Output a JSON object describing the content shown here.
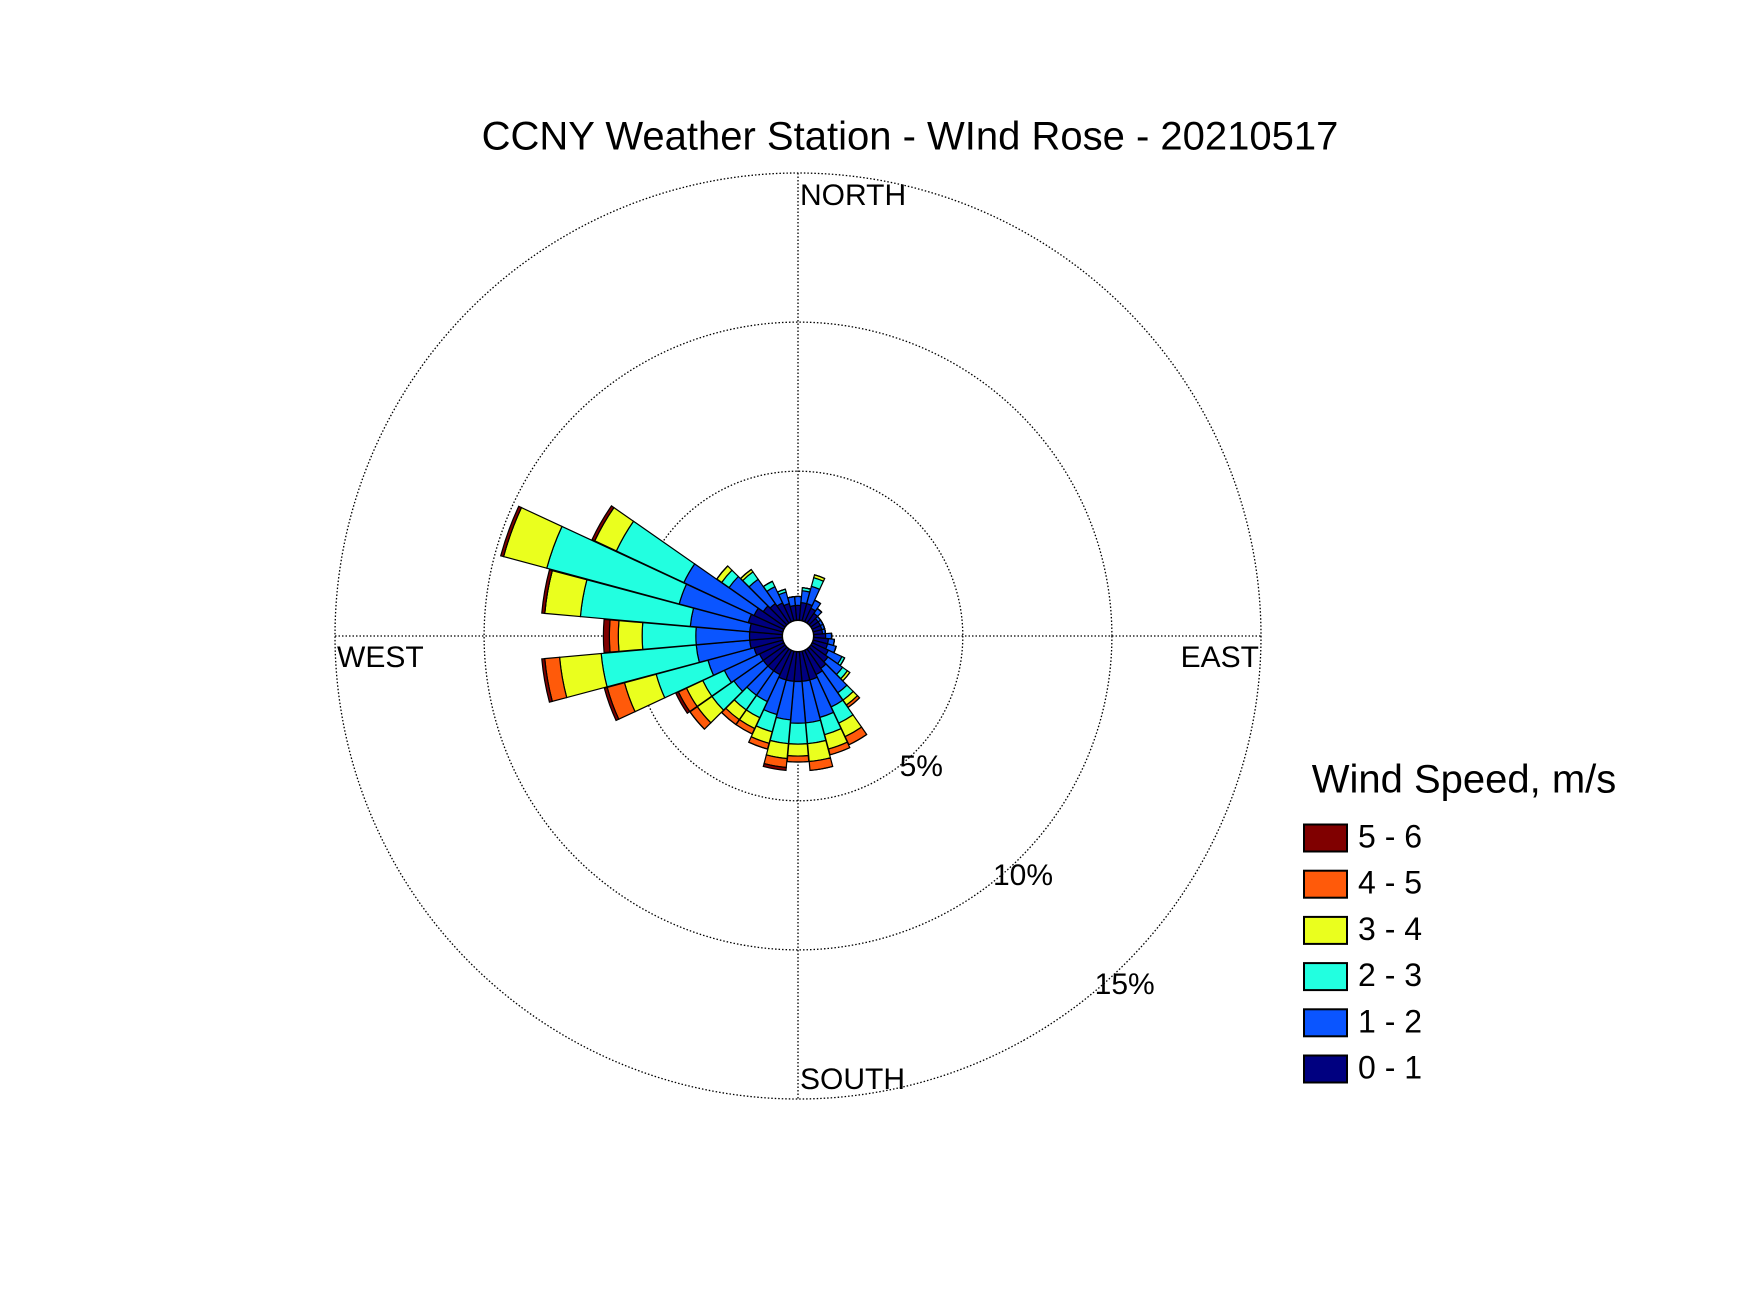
{
  "chart_data": {
    "type": "windrose",
    "title": "CCNY Weather Station - WInd Rose - 20210517",
    "direction_labels": [
      "NORTH",
      "EAST",
      "SOUTH",
      "WEST"
    ],
    "legend_title": "Wind Speed, m/s",
    "x": [
      0,
      10,
      20,
      30,
      40,
      50,
      60,
      70,
      80,
      90,
      100,
      110,
      120,
      130,
      140,
      150,
      160,
      170,
      180,
      190,
      200,
      210,
      220,
      230,
      240,
      250,
      260,
      270,
      280,
      290,
      300,
      310,
      320,
      330,
      340,
      350
    ],
    "xlim": [
      0,
      360
    ],
    "ylim": [
      0,
      15
    ],
    "yticks": [
      {
        "value": 5,
        "label": "5%"
      },
      {
        "value": 10,
        "label": "10%"
      },
      {
        "value": 15,
        "label": "15%"
      }
    ],
    "series": [
      {
        "name": "5 - 6",
        "color": "#800000",
        "values": [
          0,
          0,
          0,
          0,
          0,
          0,
          0,
          0,
          0,
          0,
          0,
          0,
          0,
          0,
          0,
          0,
          0,
          0,
          0,
          0.1,
          0,
          0,
          0,
          0,
          0.1,
          0.1,
          0.1,
          0.2,
          0.1,
          0.1,
          0.1,
          0,
          0,
          0,
          0,
          0
        ]
      },
      {
        "name": "4 - 5",
        "color": "#ff5a0a",
        "values": [
          0,
          0,
          0,
          0,
          0,
          0,
          0,
          0,
          0,
          0,
          0,
          0,
          0,
          0,
          0.1,
          0.3,
          0.2,
          0.3,
          0.2,
          0.3,
          0.2,
          0.2,
          0.2,
          0.3,
          0.3,
          0.6,
          0.5,
          0.3,
          0,
          0,
          0,
          0,
          0,
          0,
          0,
          0
        ]
      },
      {
        "name": "3 - 4",
        "color": "#eaff1e",
        "values": [
          0,
          0,
          0.1,
          0,
          0,
          0,
          0,
          0,
          0,
          0,
          0,
          0,
          0,
          0.1,
          0.2,
          0.5,
          0.5,
          0.6,
          0.4,
          0.5,
          0.4,
          0.4,
          0.4,
          0.6,
          0.6,
          1.1,
          1.4,
          0.8,
          1.2,
          1.5,
          0.8,
          0.2,
          0.1,
          0,
          0,
          0
        ]
      },
      {
        "name": "2 - 3",
        "color": "#22ffe0",
        "values": [
          0,
          0.1,
          0.3,
          0,
          0,
          0,
          0,
          0,
          0,
          0,
          0,
          0,
          0.1,
          0.2,
          0.3,
          0.6,
          0.6,
          0.7,
          0.7,
          0.8,
          0.6,
          0.6,
          0.6,
          0.9,
          0.8,
          1.8,
          3.2,
          1.8,
          3.7,
          4.6,
          2.5,
          0.3,
          0.3,
          0.2,
          0.1,
          0
        ]
      },
      {
        "name": "1 - 2",
        "color": "#0a55ff",
        "values": [
          0.3,
          0.4,
          0.6,
          0.3,
          0.2,
          0.1,
          0.1,
          0.1,
          0.1,
          0.2,
          0.2,
          0.3,
          0.5,
          0.6,
          1.0,
          1.2,
          1.3,
          1.4,
          1.4,
          1.3,
          1.2,
          1.0,
          1.0,
          1.2,
          1.3,
          1.6,
          1.8,
          1.8,
          2.0,
          2.4,
          2.6,
          1.4,
          1.0,
          0.6,
          0.4,
          0.3
        ]
      },
      {
        "name": "0 - 1",
        "color": "#000080",
        "values": [
          0.5,
          0.6,
          0.6,
          0.5,
          0.4,
          0.3,
          0.3,
          0.3,
          0.3,
          0.4,
          0.5,
          0.5,
          0.6,
          0.7,
          0.8,
          0.9,
          1.0,
          1.0,
          1.0,
          1.0,
          1.0,
          0.9,
          0.9,
          0.9,
          0.9,
          1.0,
          1.1,
          1.1,
          1.1,
          1.2,
          1.1,
          0.9,
          0.8,
          0.7,
          0.6,
          0.5
        ]
      }
    ]
  }
}
